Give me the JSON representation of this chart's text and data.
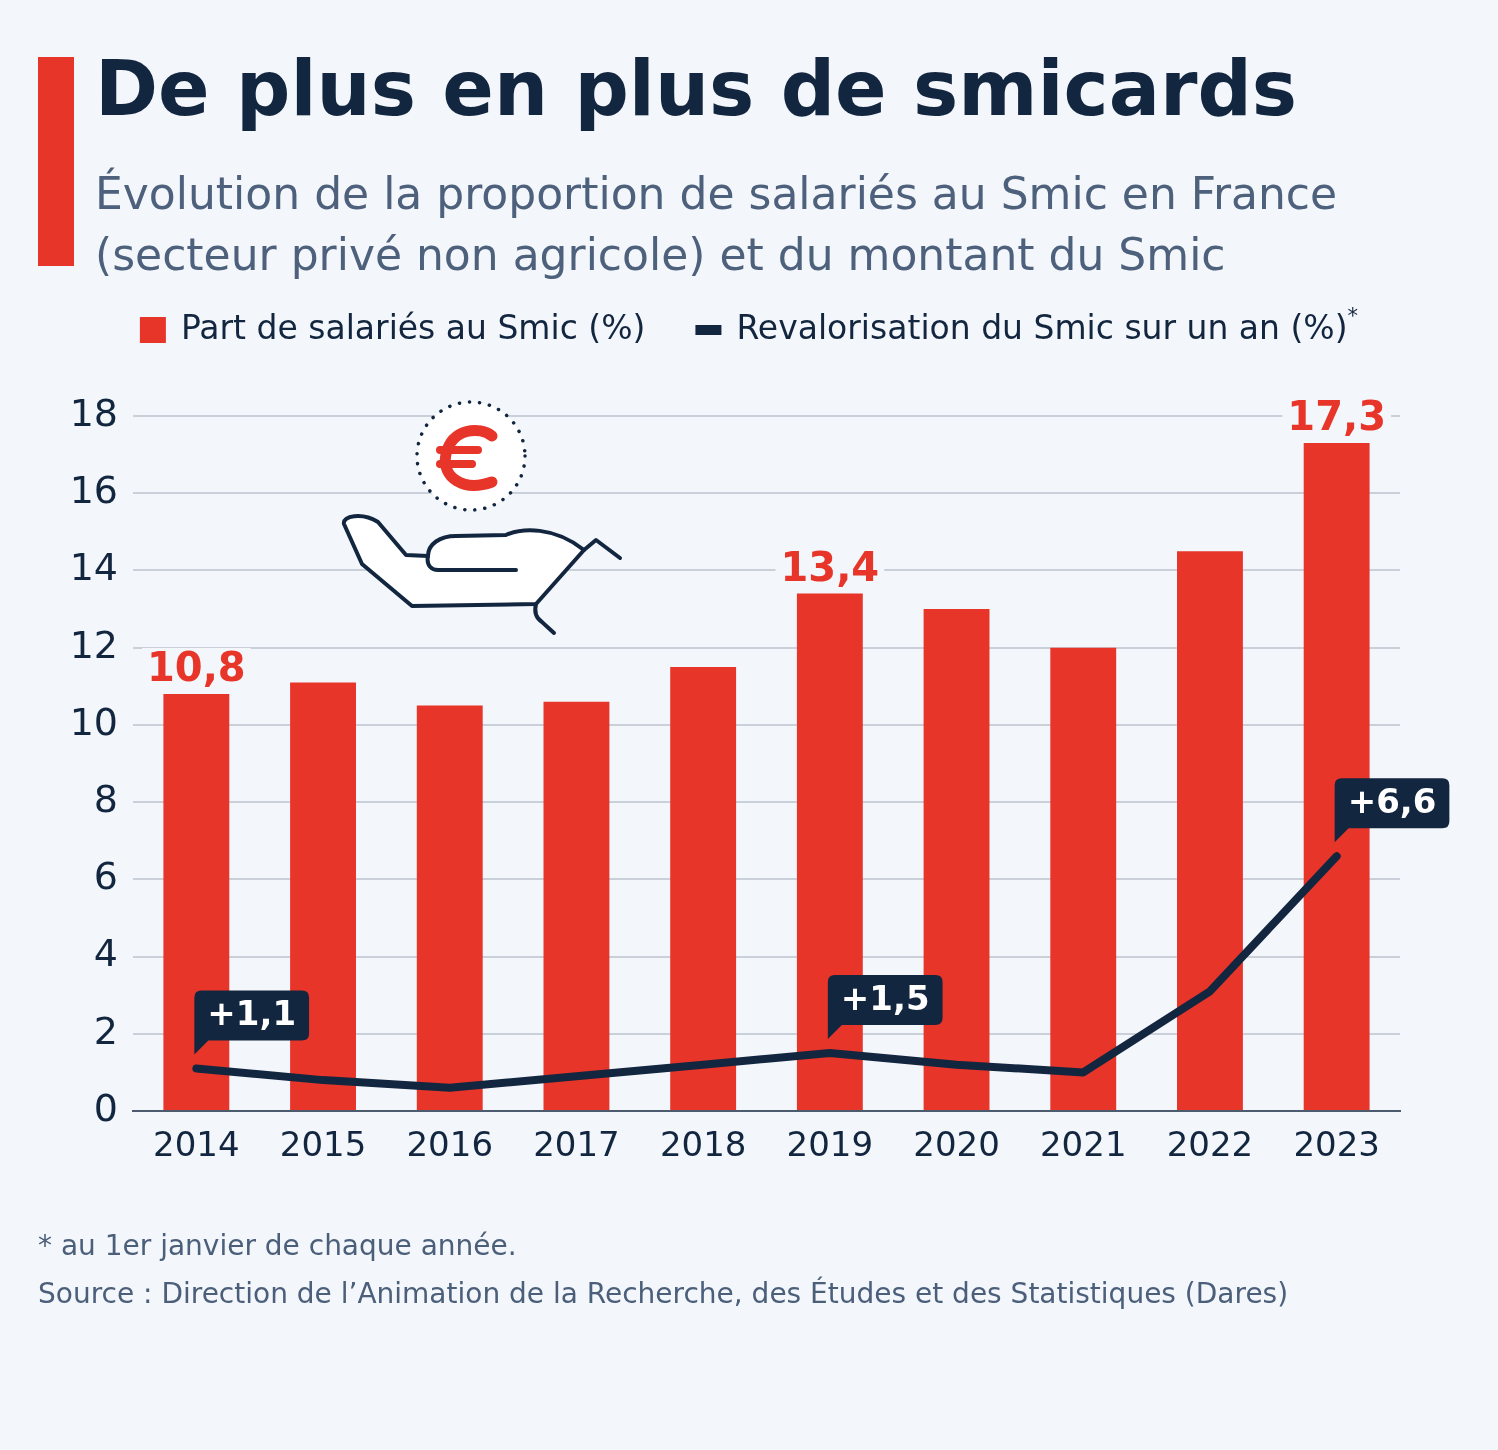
{
  "chart_data": {
    "type": "bar",
    "title": "De plus en plus de smicards",
    "subtitle": "Évolution de la proportion de salariés au Smic en France (secteur privé non agricole) et du montant du Smic",
    "categories": [
      "2014",
      "2015",
      "2016",
      "2017",
      "2018",
      "2019",
      "2020",
      "2021",
      "2022",
      "2023"
    ],
    "series": [
      {
        "name": "Part de salariés au Smic (%)",
        "color": "#e8352a",
        "values": [
          10.8,
          11.1,
          10.5,
          10.6,
          11.5,
          13.4,
          13.0,
          12.0,
          14.5,
          17.3
        ],
        "value_labels": [
          "10,8",
          null,
          null,
          null,
          null,
          "13,4",
          null,
          null,
          null,
          "17,3"
        ]
      },
      {
        "name": "Revalorisation du Smic sur un an (%)$^{*}$",
        "type": "line",
        "color": "#13263f",
        "values": [
          1.1,
          0.8,
          0.6,
          0.9,
          1.2,
          1.5,
          1.2,
          1.0,
          3.1,
          6.6
        ],
        "value_labels": [
          "+1,1",
          null,
          null,
          null,
          null,
          "+1,5",
          null,
          null,
          null,
          "+6,6"
        ]
      }
    ],
    "ylim": [
      0,
      18
    ],
    "yticks": [
      0,
      2,
      4,
      6,
      8,
      10,
      12,
      14,
      16,
      18
    ],
    "grid": "y",
    "legend": "top",
    "marker": "none",
    "line_style": "solid",
    "annotations": [
      "* au 1er janvier de chaque année.",
      "Source : Direction de l’Animation de la Recherche, des Études et des Statistiques (Dares)"
    ]
  }
}
